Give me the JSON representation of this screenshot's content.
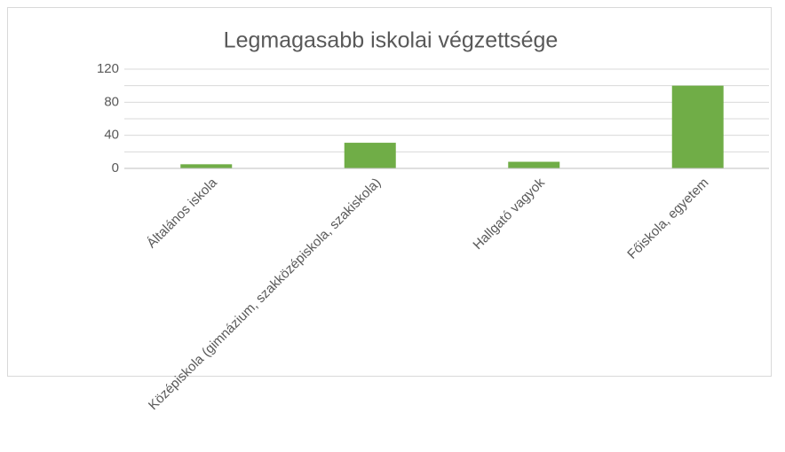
{
  "chart_data": {
    "type": "bar",
    "title": "Legmagasabb iskolai végzettsége",
    "categories": [
      "Általános iskola",
      "Középiskola (gimnázium, szakközépiskola, szakiskola)",
      "Hallgató vagyok",
      "Főiskola, egyetem"
    ],
    "values": [
      5,
      31,
      8,
      100
    ],
    "color": "#70ad47",
    "ylim": [
      0,
      120
    ],
    "yticks": [
      0,
      40,
      80,
      120
    ],
    "minor_yticks": [
      20,
      60,
      100
    ],
    "grid": true
  }
}
